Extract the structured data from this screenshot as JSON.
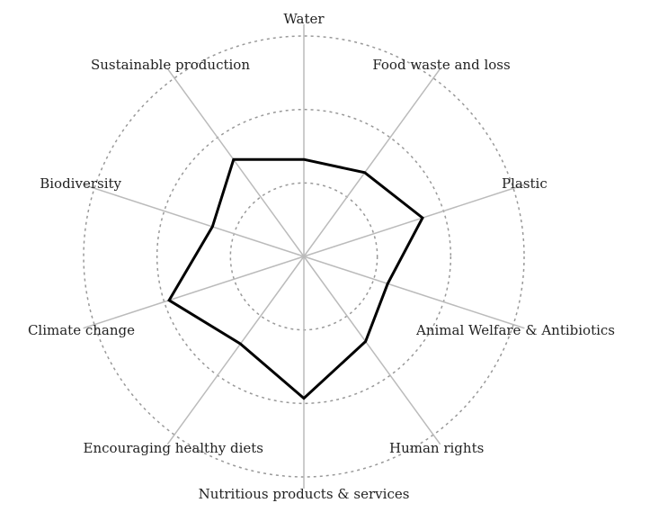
{
  "chart_data": {
    "type": "radar",
    "categories": [
      "Water",
      "Food waste and loss",
      "Plastic",
      "Animal Welfare & Antibiotics",
      "Human rights",
      "Nutritious products & services",
      "Encouraging healthy diets",
      "Climate change",
      "Biodiversity",
      "Sustainable production"
    ],
    "values": [
      1.32,
      1.41,
      1.7,
      1.2,
      1.43,
      1.93,
      1.47,
      1.93,
      1.31,
      1.63
    ],
    "color": "#000000",
    "ylim": [
      0,
      3
    ],
    "yticks": [
      1,
      2,
      3
    ]
  }
}
